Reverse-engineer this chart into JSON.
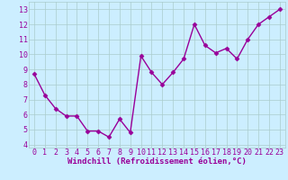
{
  "x": [
    0,
    1,
    2,
    3,
    4,
    5,
    6,
    7,
    8,
    9,
    10,
    11,
    12,
    13,
    14,
    15,
    16,
    17,
    18,
    19,
    20,
    21,
    22,
    23
  ],
  "y": [
    8.7,
    7.3,
    6.4,
    5.9,
    5.9,
    4.9,
    4.9,
    4.5,
    5.7,
    4.8,
    9.9,
    8.8,
    8.0,
    8.8,
    9.7,
    12.0,
    10.6,
    10.1,
    10.4,
    9.7,
    11.0,
    12.0,
    12.5,
    13.0
  ],
  "line_color": "#990099",
  "marker": "D",
  "marker_size": 2.5,
  "linewidth": 1.0,
  "bg_color": "#cceeff",
  "grid_color": "#aacccc",
  "xlabel": "Windchill (Refroidissement éolien,°C)",
  "xlim": [
    -0.5,
    23.5
  ],
  "ylim": [
    3.8,
    13.5
  ],
  "yticks": [
    4,
    5,
    6,
    7,
    8,
    9,
    10,
    11,
    12,
    13
  ],
  "xticks": [
    0,
    1,
    2,
    3,
    4,
    5,
    6,
    7,
    8,
    9,
    10,
    11,
    12,
    13,
    14,
    15,
    16,
    17,
    18,
    19,
    20,
    21,
    22,
    23
  ],
  "tick_color": "#990099",
  "label_color": "#990099",
  "label_fontsize": 6.5,
  "tick_fontsize": 6.0
}
